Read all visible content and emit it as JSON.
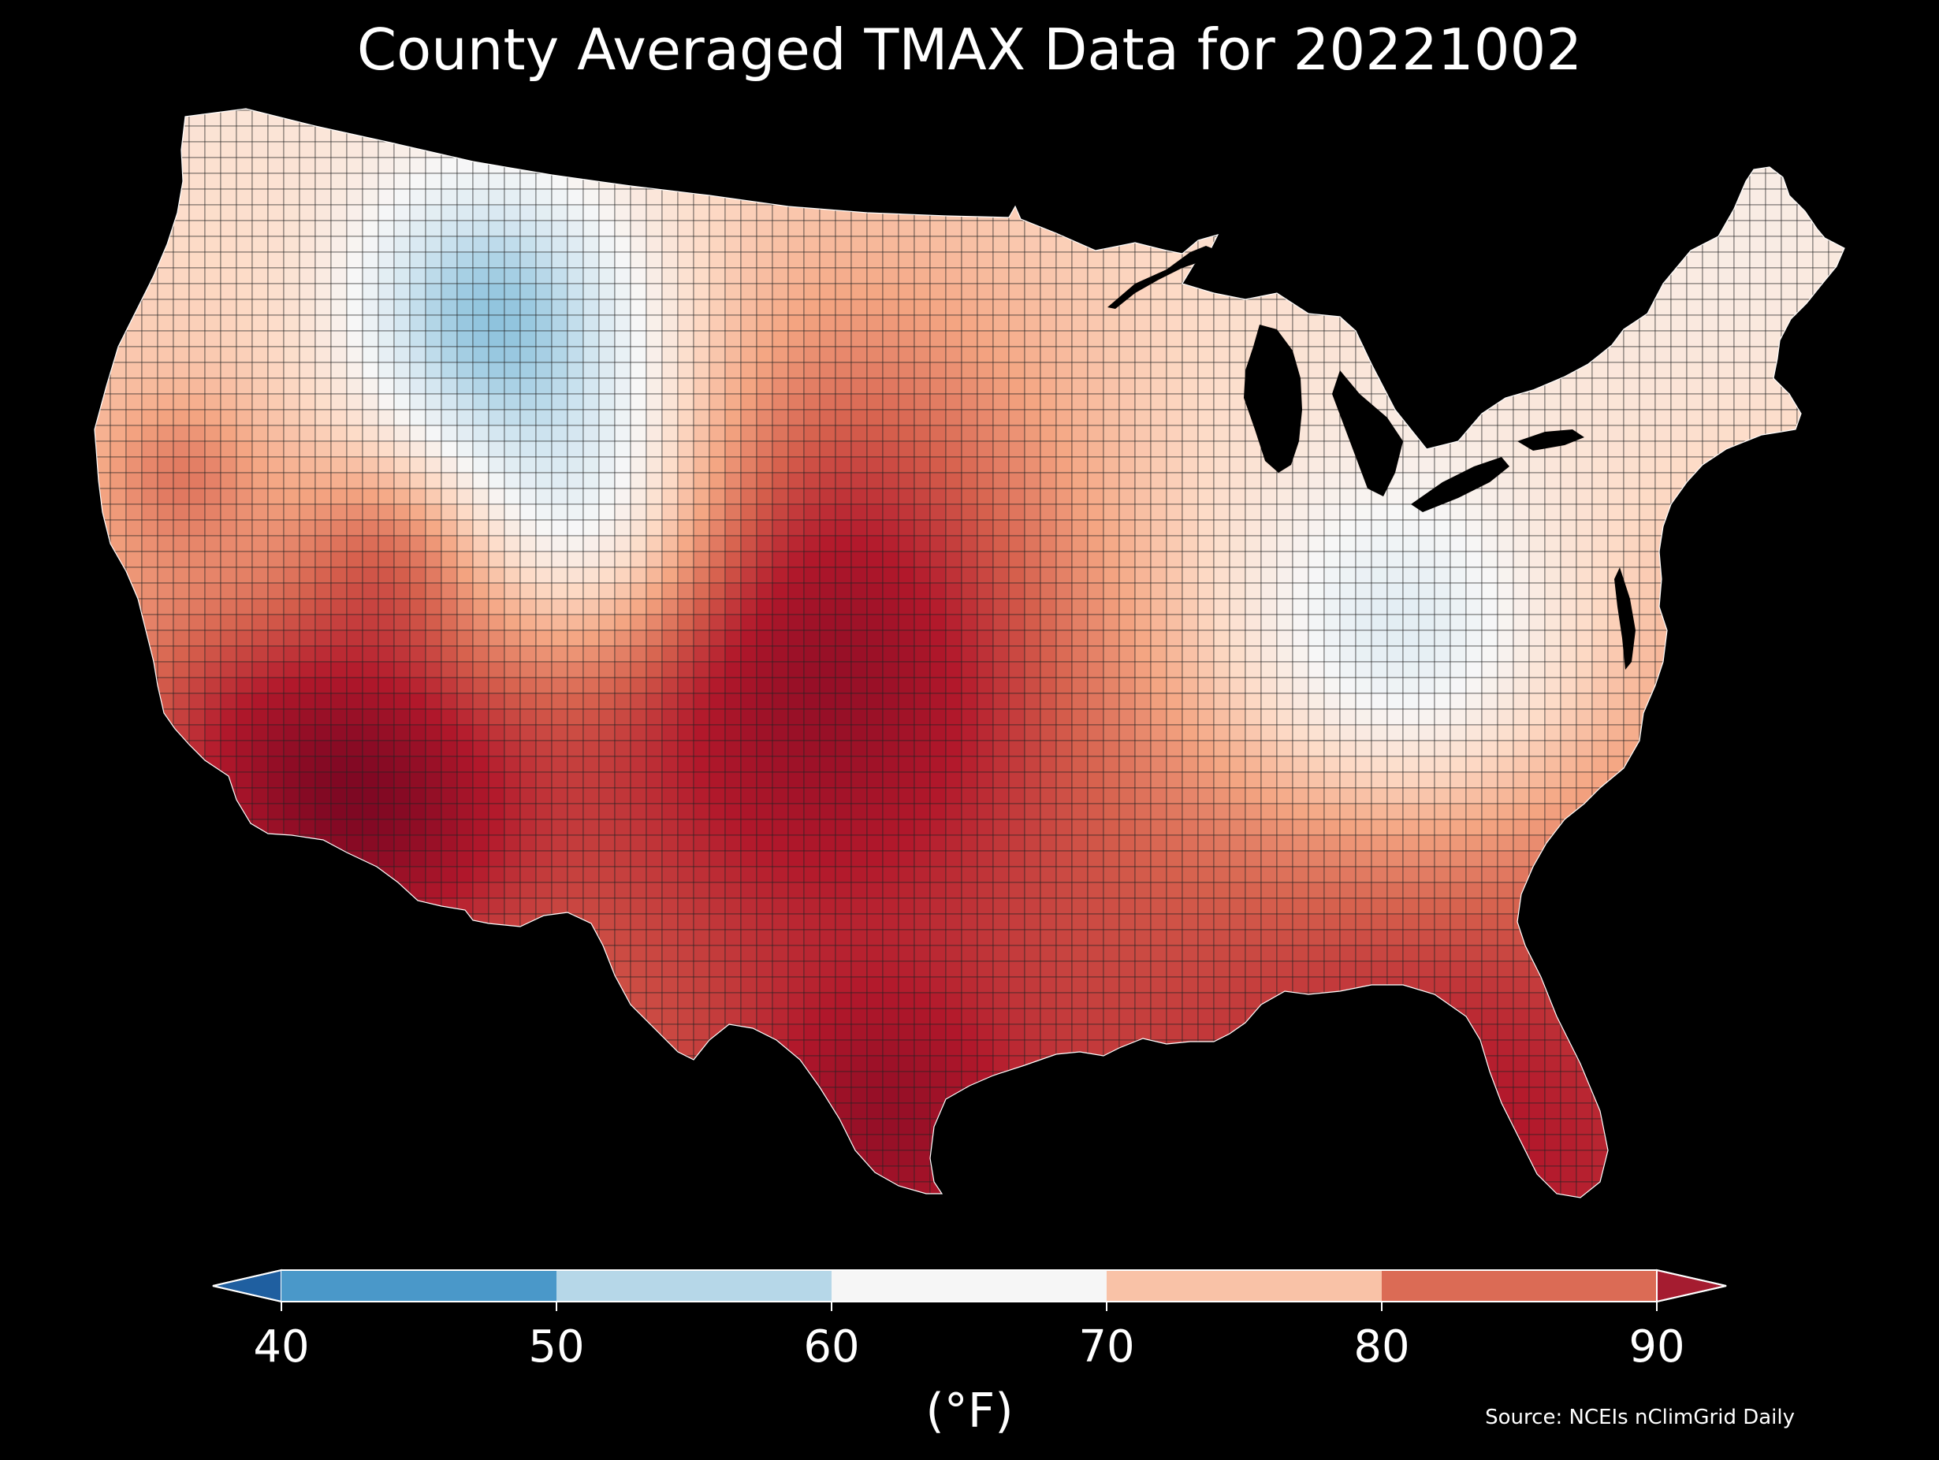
{
  "title": "County Averaged TMAX Data for 20221002",
  "colorbar": {
    "unit_label": "(°F)",
    "ticks": [
      "40",
      "50",
      "60",
      "70",
      "80",
      "90"
    ],
    "bins": [
      {
        "range": [
          40,
          50
        ],
        "color": "#4a98c9"
      },
      {
        "range": [
          50,
          60
        ],
        "color": "#b6d7e8"
      },
      {
        "range": [
          60,
          70
        ],
        "color": "#f6f6f6"
      },
      {
        "range": [
          70,
          80
        ],
        "color": "#f9c2a7"
      },
      {
        "range": [
          80,
          90
        ],
        "color": "#db6b55"
      }
    ],
    "under_color": "#1f5fa0",
    "over_color": "#a51c30",
    "extend": "both"
  },
  "source": "Source: NCEIs nClimGrid Daily",
  "colors": {
    "background": "#000000",
    "county_border": "#222222",
    "text": "#ffffff"
  }
}
